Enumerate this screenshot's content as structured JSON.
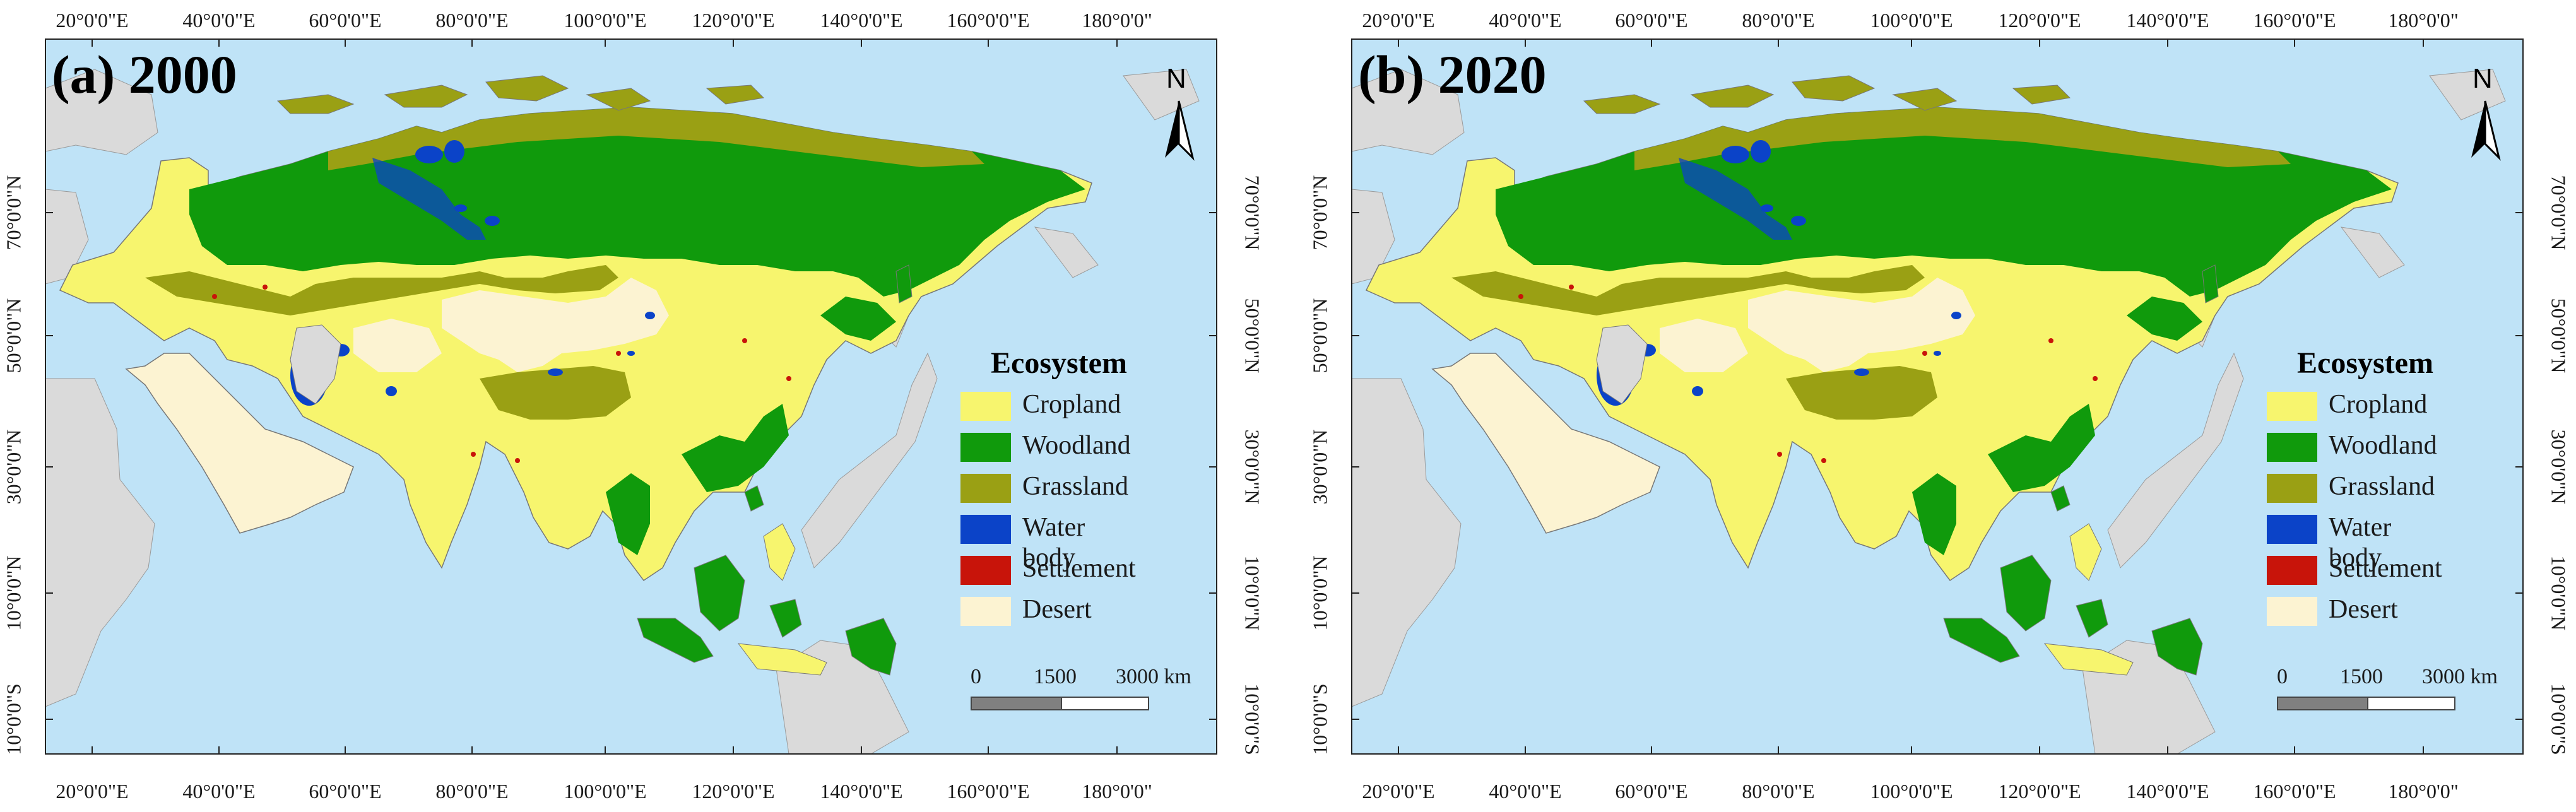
{
  "colors": {
    "ocean": "#bfe3f7",
    "land_other": "#dadada",
    "cropland": "#f7f56e",
    "woodland": "#109a0c",
    "grassland": "#9aa014",
    "water_body": "#0b43c8",
    "settlement": "#c8140a",
    "desert": "#fcf3d2"
  },
  "panels": [
    {
      "title": "(a) 2000",
      "top_labels": [
        "20°0'0\"E",
        "40°0'0\"E",
        "60°0'0\"E",
        "80°0'0\"E",
        "100°0'0\"E",
        "120°0'0\"E",
        "140°0'0\"E",
        "160°0'0\"E",
        "180°0'0\""
      ],
      "bottom_labels": [
        "20°0'0\"E",
        "40°0'0\"E",
        "60°0'0\"E",
        "80°0'0\"E",
        "100°0'0\"E",
        "120°0'0\"E",
        "140°0'0\"E",
        "160°0'0\"E",
        "180°0'0\""
      ],
      "left_labels": [
        "70°0'0\"N",
        "50°0'0\"N",
        "30°0'0\"N",
        "10°0'0\"N",
        "10°0'0\"S"
      ],
      "right_labels": [
        "70°0'0\"N",
        "50°0'0\"N",
        "30°0'0\"N",
        "10°0'0\"N",
        "10°0'0\"S"
      ],
      "north_arrow": "N",
      "legend": {
        "title": "Ecosystem",
        "items": [
          {
            "label": "Cropland",
            "icon": "cropland-swatch"
          },
          {
            "label": "Woodland",
            "icon": "woodland-swatch"
          },
          {
            "label": "Grassland",
            "icon": "grassland-swatch"
          },
          {
            "label": "Water body",
            "icon": "water-body-swatch"
          },
          {
            "label": "Settlement",
            "icon": "settlement-swatch"
          },
          {
            "label": "Desert",
            "icon": "desert-swatch"
          }
        ]
      },
      "scale": {
        "start": "0",
        "mid": "1500",
        "end": "3000 km"
      }
    },
    {
      "title": "(b) 2020",
      "top_labels": [
        "20°0'0\"E",
        "40°0'0\"E",
        "60°0'0\"E",
        "80°0'0\"E",
        "100°0'0\"E",
        "120°0'0\"E",
        "140°0'0\"E",
        "160°0'0\"E",
        "180°0'0\""
      ],
      "bottom_labels": [
        "20°0'0\"E",
        "40°0'0\"E",
        "60°0'0\"E",
        "80°0'0\"E",
        "100°0'0\"E",
        "120°0'0\"E",
        "140°0'0\"E",
        "160°0'0\"E",
        "180°0'0\""
      ],
      "left_labels": [
        "70°0'0\"N",
        "50°0'0\"N",
        "30°0'0\"N",
        "10°0'0\"N",
        "10°0'0\"S"
      ],
      "right_labels": [
        "70°0'0\"N",
        "50°0'0\"N",
        "30°0'0\"N",
        "10°0'0\"N",
        "10°0'0\"S"
      ],
      "north_arrow": "N",
      "legend": {
        "title": "Ecosystem",
        "items": [
          {
            "label": "Cropland",
            "icon": "cropland-swatch"
          },
          {
            "label": "Woodland",
            "icon": "woodland-swatch"
          },
          {
            "label": "Grassland",
            "icon": "grassland-swatch"
          },
          {
            "label": "Water body",
            "icon": "water-body-swatch"
          },
          {
            "label": "Settlement",
            "icon": "settlement-swatch"
          },
          {
            "label": "Desert",
            "icon": "desert-swatch"
          }
        ]
      },
      "scale": {
        "start": "0",
        "mid": "1500",
        "end": "3000 km"
      }
    }
  ]
}
